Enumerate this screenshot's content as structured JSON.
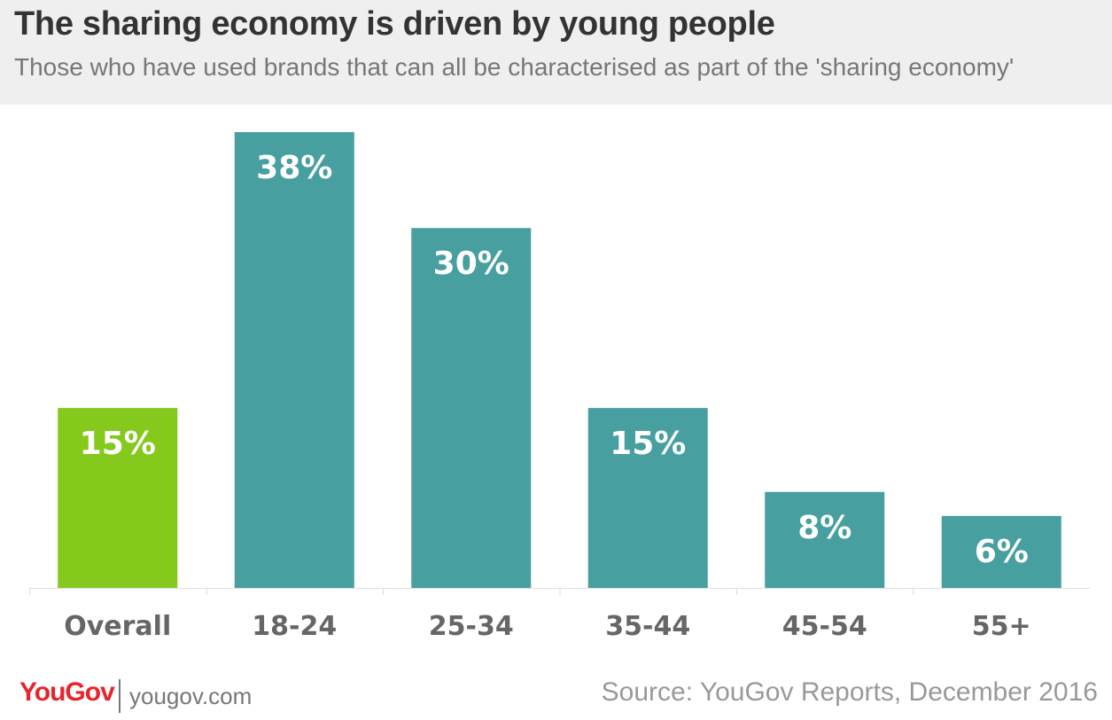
{
  "header": {
    "title": "The sharing economy is driven by young people",
    "subtitle": "Those who have used brands that can all be characterised as part of the 'sharing economy'"
  },
  "chart_data": {
    "type": "bar",
    "categories": [
      "Overall",
      "18-24",
      "25-34",
      "35-44",
      "45-54",
      "55+"
    ],
    "values": [
      15,
      38,
      30,
      15,
      8,
      6
    ],
    "value_labels": [
      "15%",
      "38%",
      "30%",
      "15%",
      "8%",
      "6%"
    ],
    "ylim": [
      0,
      38
    ],
    "grid": false,
    "colors": {
      "highlight": "#84c91b",
      "default": "#479f9f"
    },
    "highlight_index": 0
  },
  "footer": {
    "logo": "YouGov",
    "site": "yougov.com",
    "source": "Source: YouGov Reports, December 2016"
  }
}
